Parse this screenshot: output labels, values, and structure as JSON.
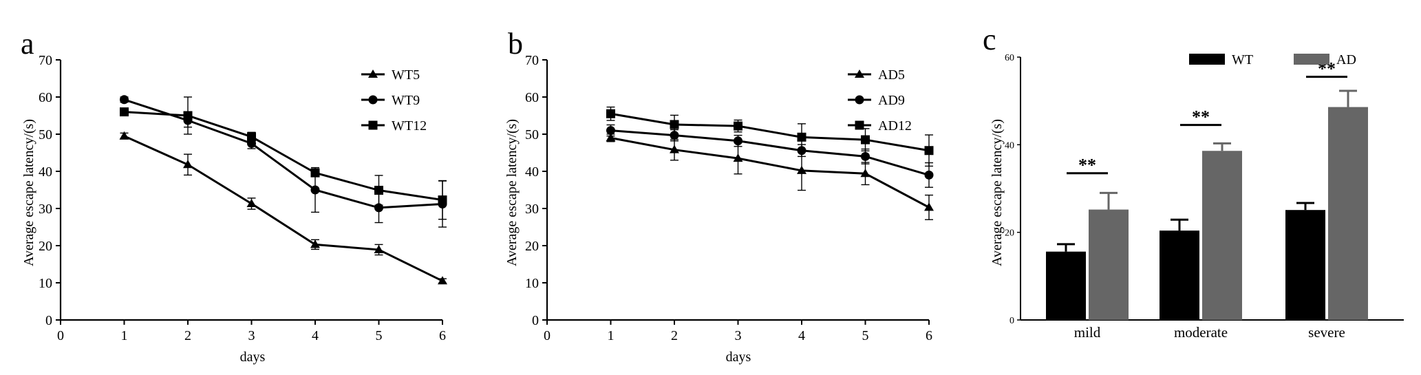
{
  "chart_data": [
    {
      "id": "a",
      "type": "line",
      "panel_label": "a",
      "xlabel": "days",
      "ylabel": "Average escape latency/(s)",
      "xlim": [
        0,
        6
      ],
      "ylim": [
        0,
        70
      ],
      "x_ticks": [
        0,
        1,
        2,
        3,
        4,
        5,
        6
      ],
      "y_ticks": [
        0,
        10,
        20,
        30,
        40,
        50,
        60,
        70
      ],
      "x": [
        1,
        2,
        3,
        4,
        5,
        6
      ],
      "grid": false,
      "legend_position": "top-right",
      "series": [
        {
          "name": "WT5",
          "marker": "triangle",
          "values": [
            49.5,
            41.8,
            31.3,
            20.3,
            18.9,
            10.5
          ],
          "errors": [
            0.8,
            2.8,
            1.5,
            1.3,
            1.4,
            0.6
          ]
        },
        {
          "name": "WT9",
          "marker": "circle",
          "values": [
            59.3,
            53.7,
            47.5,
            35.0,
            30.2,
            31.2
          ],
          "errors": [
            0.7,
            1.8,
            1.4,
            6.0,
            4.0,
            6.2
          ]
        },
        {
          "name": "WT12",
          "marker": "square",
          "values": [
            56.0,
            55.0,
            49.3,
            39.6,
            34.9,
            32.3
          ],
          "errors": [
            1.0,
            5.0,
            1.2,
            1.0,
            4.0,
            5.2
          ]
        }
      ]
    },
    {
      "id": "b",
      "type": "line",
      "panel_label": "b",
      "xlabel": "days",
      "ylabel": "Average escape latency/(s)",
      "xlim": [
        0,
        6
      ],
      "ylim": [
        0,
        70
      ],
      "x_ticks": [
        0,
        1,
        2,
        3,
        4,
        5,
        6
      ],
      "y_ticks": [
        0,
        10,
        20,
        30,
        40,
        50,
        60,
        70
      ],
      "x": [
        1,
        2,
        3,
        4,
        5,
        6
      ],
      "grid": false,
      "legend_position": "top-right",
      "series": [
        {
          "name": "AD5",
          "marker": "triangle",
          "values": [
            49.0,
            45.8,
            43.5,
            40.2,
            39.4,
            30.3
          ],
          "errors": [
            1.0,
            2.8,
            4.2,
            5.3,
            3.0,
            3.3
          ]
        },
        {
          "name": "AD9",
          "marker": "circle",
          "values": [
            51.0,
            49.7,
            48.2,
            45.6,
            44.0,
            39.0
          ],
          "errors": [
            1.5,
            1.5,
            1.5,
            1.6,
            2.0,
            3.3
          ]
        },
        {
          "name": "AD12",
          "marker": "square",
          "values": [
            55.5,
            52.6,
            52.2,
            49.2,
            48.5,
            45.6
          ],
          "errors": [
            1.8,
            2.5,
            1.6,
            3.6,
            3.0,
            4.2
          ]
        }
      ]
    },
    {
      "id": "c",
      "type": "bar",
      "panel_label": "c",
      "xlabel": "",
      "ylabel": "Average escape latency/(s)",
      "ylim": [
        0,
        60
      ],
      "y_ticks": [
        0,
        20,
        40,
        60
      ],
      "categories": [
        "mild",
        "moderate",
        "severe"
      ],
      "grid": false,
      "legend_position": "top-center",
      "series": [
        {
          "name": "WT",
          "color": "#000000",
          "values": [
            15.6,
            20.4,
            25.1
          ],
          "errors": [
            1.7,
            2.5,
            1.6
          ]
        },
        {
          "name": "AD",
          "color": "#666666",
          "values": [
            25.2,
            38.6,
            48.6
          ],
          "errors": [
            3.8,
            1.7,
            3.7
          ]
        }
      ],
      "significance": [
        {
          "category": "mild",
          "label": "**",
          "y": 33.5
        },
        {
          "category": "moderate",
          "label": "**",
          "y": 44.5
        },
        {
          "category": "severe",
          "label": "**",
          "y": 55.5
        }
      ]
    }
  ]
}
